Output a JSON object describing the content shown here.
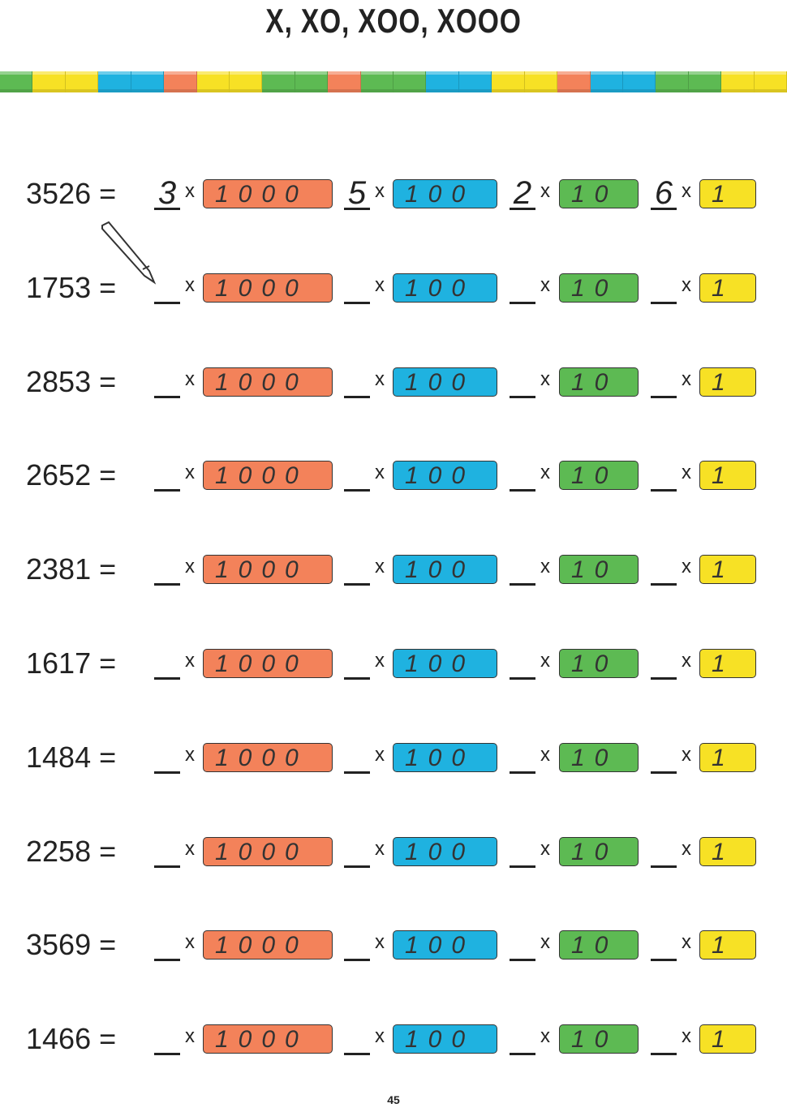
{
  "header": {
    "title": "X, XO, XOO, XOOO"
  },
  "places": [
    "1000",
    "100",
    "10",
    "1"
  ],
  "sign": "x",
  "rows": [
    {
      "number": "3526 =",
      "digits": [
        "3",
        "5",
        "2",
        "6"
      ]
    },
    {
      "number": "1753 ="
    },
    {
      "number": "2853 ="
    },
    {
      "number": "2652 ="
    },
    {
      "number": "2381 ="
    },
    {
      "number": "1617 ="
    },
    {
      "number": "1484 ="
    },
    {
      "number": "2258 ="
    },
    {
      "number": "3569 ="
    },
    {
      "number": "1466 ="
    }
  ],
  "page_number": "45"
}
